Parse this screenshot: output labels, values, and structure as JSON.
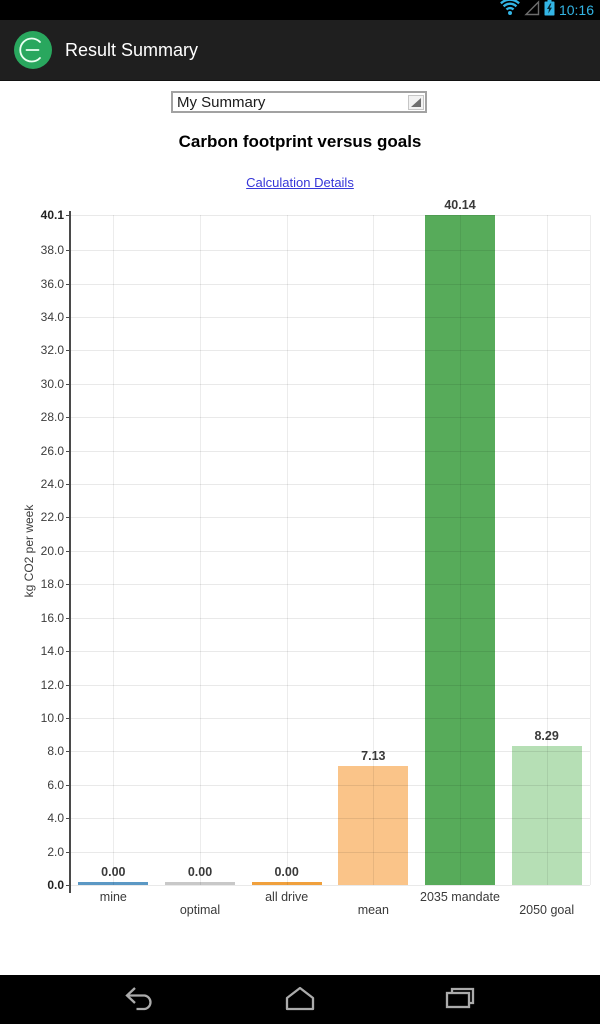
{
  "status_bar": {
    "time": "10:16",
    "accent_color": "#33b5e5"
  },
  "app_bar": {
    "title": "Result Summary",
    "logo_color": "#29a75e"
  },
  "summary_selector": {
    "value": "My Summary"
  },
  "page": {
    "title": "Carbon footprint versus goals",
    "details_link": "Calculation Details",
    "link_color": "#3636d8"
  },
  "chart_data": {
    "type": "bar",
    "title": "Carbon footprint versus goals",
    "ylabel": "kg CO2 per week",
    "categories": [
      "mine",
      "optimal",
      "all drive",
      "mean",
      "2035 mandate",
      "2050 goal"
    ],
    "values": [
      0.0,
      0.0,
      0.0,
      7.13,
      40.14,
      8.29
    ],
    "value_labels": [
      "0.00",
      "0.00",
      "0.00",
      "7.13",
      "40.14",
      "8.29"
    ],
    "bar_colors": [
      "#5b98c4",
      "#c8c8c8",
      "#f0a03c",
      "#fac489",
      "#57ab5a",
      "#b6dfb5"
    ],
    "axis_max": 40.1,
    "ylim": [
      0,
      40.14
    ],
    "grid": true,
    "legend": "none",
    "yticks": [
      {
        "value": 0,
        "label": "0.0",
        "bold": true
      },
      {
        "value": 2,
        "label": "2.0",
        "bold": false
      },
      {
        "value": 4,
        "label": "4.0",
        "bold": false
      },
      {
        "value": 6,
        "label": "6.0",
        "bold": false
      },
      {
        "value": 8,
        "label": "8.0",
        "bold": false
      },
      {
        "value": 10,
        "label": "10.0",
        "bold": false
      },
      {
        "value": 12,
        "label": "12.0",
        "bold": false
      },
      {
        "value": 14,
        "label": "14.0",
        "bold": false
      },
      {
        "value": 16,
        "label": "16.0",
        "bold": false
      },
      {
        "value": 18,
        "label": "18.0",
        "bold": false
      },
      {
        "value": 20,
        "label": "20.0",
        "bold": false
      },
      {
        "value": 22,
        "label": "22.0",
        "bold": false
      },
      {
        "value": 24,
        "label": "24.0",
        "bold": false
      },
      {
        "value": 26,
        "label": "26.0",
        "bold": false
      },
      {
        "value": 28,
        "label": "28.0",
        "bold": false
      },
      {
        "value": 30,
        "label": "30.0",
        "bold": false
      },
      {
        "value": 32,
        "label": "32.0",
        "bold": false
      },
      {
        "value": 34,
        "label": "34.0",
        "bold": false
      },
      {
        "value": 36,
        "label": "36.0",
        "bold": false
      },
      {
        "value": 38,
        "label": "38.0",
        "bold": false
      },
      {
        "value": 40.1,
        "label": "40.1",
        "bold": true
      }
    ]
  }
}
